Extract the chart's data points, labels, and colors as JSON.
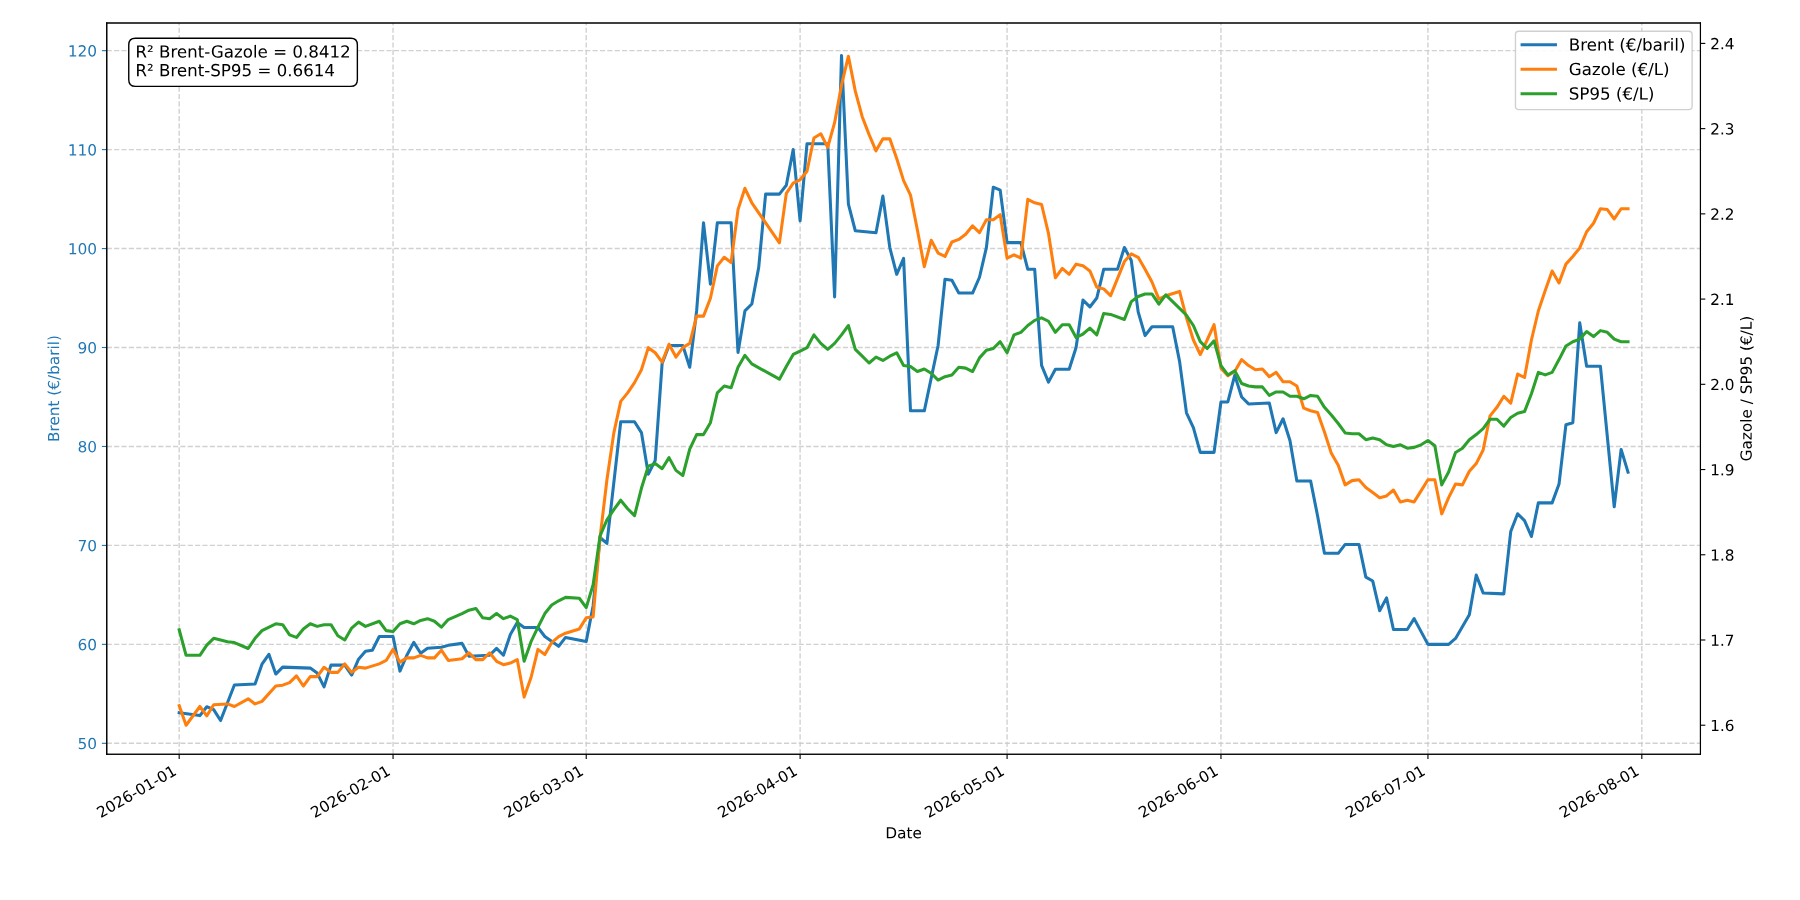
{
  "chart_data": {
    "type": "line",
    "xlabel": "Date",
    "ylabel": "Brent (€/baril)",
    "y2label": "Gazole / SP95 (€/L)",
    "annotations": [
      "R² Brent-Gazole = 0.8412",
      "R² Brent-SP95 = 0.6614"
    ],
    "legend": "top right",
    "grid": true,
    "line_style": "solid",
    "marker": "none",
    "xlim": [
      "2025-12-21T12:00",
      "2026-08-09T12:00"
    ],
    "xticks": [
      "2026-01-01",
      "2026-02-01",
      "2026-03-01",
      "2026-04-01",
      "2026-05-01",
      "2026-06-01",
      "2026-07-01",
      "2026-08-01"
    ],
    "ylim": [
      48.9,
      122.8
    ],
    "yticks": [
      50,
      60,
      70,
      80,
      90,
      100,
      110,
      120
    ],
    "y2lim": [
      1.566,
      2.424
    ],
    "y2ticks": [
      1.6,
      1.7,
      1.8,
      1.9,
      {
        "value": 2.0,
        "label": "2.0"
      },
      2.1,
      2.2,
      2.3,
      2.4
    ],
    "x": [
      "2026-01-01",
      "2026-01-02",
      "2026-01-04",
      "2026-01-05",
      "2026-01-06",
      "2026-01-08",
      "2026-01-09",
      "2026-01-11",
      "2026-01-12",
      "2026-01-13",
      "2026-01-15",
      "2026-01-16",
      "2026-01-17",
      "2026-01-18",
      "2026-01-19",
      "2026-01-20",
      "2026-01-21",
      "2026-01-22",
      "2026-01-23",
      "2026-01-24",
      "2026-01-25",
      "2026-01-26",
      "2026-01-27",
      "2026-01-28",
      "2026-01-30",
      "2026-01-31",
      "2026-02-01",
      "2026-02-02",
      "2026-02-03",
      "2026-02-04",
      "2026-02-05",
      "2026-02-06",
      "2026-02-07",
      "2026-02-08",
      "2026-02-09",
      "2026-02-11",
      "2026-02-12",
      "2026-02-13",
      "2026-02-14",
      "2026-02-15",
      "2026-02-16",
      "2026-02-17",
      "2026-02-18",
      "2026-02-19",
      "2026-02-20",
      "2026-02-21",
      "2026-02-22",
      "2026-02-23",
      "2026-02-24",
      "2026-02-25",
      "2026-02-26",
      "2026-02-28",
      "2026-03-01",
      "2026-03-02",
      "2026-03-03",
      "2026-03-04",
      "2026-03-05",
      "2026-03-06",
      "2026-03-07",
      "2026-03-08",
      "2026-03-09",
      "2026-03-10",
      "2026-03-11",
      "2026-03-12",
      "2026-03-13",
      "2026-03-14",
      "2026-03-15",
      "2026-03-16",
      "2026-03-17",
      "2026-03-18",
      "2026-03-19",
      "2026-03-20",
      "2026-03-21",
      "2026-03-22",
      "2026-03-23",
      "2026-03-24",
      "2026-03-25",
      "2026-03-29",
      "2026-03-30",
      "2026-03-31",
      "2026-04-01",
      "2026-04-02",
      "2026-04-03",
      "2026-04-04",
      "2026-04-05",
      "2026-04-06",
      "2026-04-07",
      "2026-04-08",
      "2026-04-09",
      "2026-04-10",
      "2026-04-11",
      "2026-04-12",
      "2026-04-13",
      "2026-04-14",
      "2026-04-15",
      "2026-04-16",
      "2026-04-17",
      "2026-04-18",
      "2026-04-19",
      "2026-04-20",
      "2026-04-21",
      "2026-04-22",
      "2026-04-23",
      "2026-04-24",
      "2026-04-25",
      "2026-04-26",
      "2026-04-27",
      "2026-04-28",
      "2026-04-29",
      "2026-04-30",
      "2026-05-01",
      "2026-05-02",
      "2026-05-03",
      "2026-05-04",
      "2026-05-05",
      "2026-05-06",
      "2026-05-07",
      "2026-05-08",
      "2026-05-09",
      "2026-05-10",
      "2026-05-11",
      "2026-05-12",
      "2026-05-13",
      "2026-05-14",
      "2026-05-15",
      "2026-05-16",
      "2026-05-18",
      "2026-05-19",
      "2026-05-20",
      "2026-05-21",
      "2026-05-22",
      "2026-05-23",
      "2026-05-24",
      "2026-05-26",
      "2026-05-27",
      "2026-05-28",
      "2026-05-29",
      "2026-05-30",
      "2026-05-31",
      "2026-06-01",
      "2026-06-02",
      "2026-06-03",
      "2026-06-04",
      "2026-06-05",
      "2026-06-06",
      "2026-06-07",
      "2026-06-08",
      "2026-06-09",
      "2026-06-10",
      "2026-06-11",
      "2026-06-12",
      "2026-06-13",
      "2026-06-14",
      "2026-06-15",
      "2026-06-16",
      "2026-06-17",
      "2026-06-18",
      "2026-06-19",
      "2026-06-20",
      "2026-06-21",
      "2026-06-22",
      "2026-06-23",
      "2026-06-24",
      "2026-06-25",
      "2026-06-26",
      "2026-06-27",
      "2026-06-28",
      "2026-06-29",
      "2026-06-30",
      "2026-07-01",
      "2026-07-02",
      "2026-07-03",
      "2026-07-04",
      "2026-07-05",
      "2026-07-06",
      "2026-07-07",
      "2026-07-08",
      "2026-07-09",
      "2026-07-10",
      "2026-07-11",
      "2026-07-12",
      "2026-07-13",
      "2026-07-14",
      "2026-07-15",
      "2026-07-16",
      "2026-07-17",
      "2026-07-18",
      "2026-07-19",
      "2026-07-20",
      "2026-07-21",
      "2026-07-22",
      "2026-07-23",
      "2026-07-24",
      "2026-07-25",
      "2026-07-26",
      "2026-07-27",
      "2026-07-28",
      "2026-07-29",
      "2026-07-30"
    ],
    "series": [
      {
        "name": "Brent (€/baril)",
        "color": "#1f77b4",
        "x": [
          "2026-01-01",
          "2026-01-04",
          "2026-01-05",
          "2026-01-06",
          "2026-01-07",
          "2026-01-09",
          "2026-01-12",
          "2026-01-13",
          "2026-01-14",
          "2026-01-15",
          "2026-01-16",
          "2026-01-20",
          "2026-01-21",
          "2026-01-22",
          "2026-01-23",
          "2026-01-25",
          "2026-01-26",
          "2026-01-27",
          "2026-01-28",
          "2026-01-29",
          "2026-01-30",
          "2026-02-01",
          "2026-02-02",
          "2026-02-03",
          "2026-02-04",
          "2026-02-05",
          "2026-02-06",
          "2026-02-08",
          "2026-02-09",
          "2026-02-11",
          "2026-02-12",
          "2026-02-15",
          "2026-02-16",
          "2026-02-17",
          "2026-02-18",
          "2026-02-19",
          "2026-02-20",
          "2026-02-22",
          "2026-02-23",
          "2026-02-25",
          "2026-02-26",
          "2026-03-01",
          "2026-03-02",
          "2026-03-03",
          "2026-03-04",
          "2026-03-06",
          "2026-03-08",
          "2026-03-09",
          "2026-03-10",
          "2026-03-11",
          "2026-03-12",
          "2026-03-13",
          "2026-03-15",
          "2026-03-16",
          "2026-03-17",
          "2026-03-18",
          "2026-03-19",
          "2026-03-20",
          "2026-03-22",
          "2026-03-23",
          "2026-03-24",
          "2026-03-25",
          "2026-03-26",
          "2026-03-27",
          "2026-03-29",
          "2026-03-30",
          "2026-03-31",
          "2026-04-01",
          "2026-04-02",
          "2026-04-05",
          "2026-04-06",
          "2026-04-07",
          "2026-04-08",
          "2026-04-09",
          "2026-04-12",
          "2026-04-13",
          "2026-04-14",
          "2026-04-15",
          "2026-04-16",
          "2026-04-17",
          "2026-04-19",
          "2026-04-21",
          "2026-04-22",
          "2026-04-23",
          "2026-04-24",
          "2026-04-26",
          "2026-04-27",
          "2026-04-28",
          "2026-04-29",
          "2026-04-30",
          "2026-05-01",
          "2026-05-03",
          "2026-05-04",
          "2026-05-05",
          "2026-05-06",
          "2026-05-07",
          "2026-05-08",
          "2026-05-10",
          "2026-05-11",
          "2026-05-12",
          "2026-05-13",
          "2026-05-14",
          "2026-05-15",
          "2026-05-17",
          "2026-05-18",
          "2026-05-19",
          "2026-05-20",
          "2026-05-21",
          "2026-05-22",
          "2026-05-25",
          "2026-05-26",
          "2026-05-27",
          "2026-05-28",
          "2026-05-29",
          "2026-05-31",
          "2026-06-01",
          "2026-06-02",
          "2026-06-03",
          "2026-06-04",
          "2026-06-05",
          "2026-06-08",
          "2026-06-09",
          "2026-06-10",
          "2026-06-11",
          "2026-06-12",
          "2026-06-14",
          "2026-06-15",
          "2026-06-16",
          "2026-06-18",
          "2026-06-19",
          "2026-06-21",
          "2026-06-22",
          "2026-06-23",
          "2026-06-24",
          "2026-06-25",
          "2026-06-26",
          "2026-06-28",
          "2026-06-29",
          "2026-07-01",
          "2026-07-04",
          "2026-07-05",
          "2026-07-07",
          "2026-07-08",
          "2026-07-09",
          "2026-07-12",
          "2026-07-13",
          "2026-07-14",
          "2026-07-15",
          "2026-07-16",
          "2026-07-17",
          "2026-07-19",
          "2026-07-20",
          "2026-07-21",
          "2026-07-22",
          "2026-07-23",
          "2026-07-24",
          "2026-07-26",
          "2026-07-28",
          "2026-07-29",
          "2026-07-30"
        ],
        "values": [
          53.1,
          52.8,
          53.7,
          53.4,
          52.3,
          55.9,
          56.0,
          58.0,
          59.0,
          57.0,
          57.7,
          57.6,
          57.1,
          55.7,
          57.9,
          57.9,
          56.9,
          58.5,
          59.3,
          59.4,
          60.8,
          60.8,
          57.3,
          58.9,
          60.2,
          59.1,
          59.6,
          59.7,
          59.9,
          60.1,
          58.8,
          58.9,
          59.6,
          58.9,
          61.0,
          62.2,
          61.7,
          61.7,
          60.8,
          59.8,
          60.7,
          60.3,
          63.9,
          70.8,
          70.2,
          82.5,
          82.5,
          81.4,
          77.2,
          78.6,
          88.4,
          90.2,
          90.2,
          88.0,
          93.7,
          102.6,
          96.4,
          102.6,
          102.6,
          89.5,
          93.7,
          94.4,
          98.1,
          105.5,
          105.5,
          106.4,
          110.0,
          102.8,
          110.6,
          110.6,
          95.1,
          119.5,
          104.5,
          101.8,
          101.6,
          105.3,
          100.1,
          97.4,
          99.0,
          83.6,
          83.6,
          90.2,
          96.9,
          96.8,
          95.5,
          95.5,
          97.1,
          100.1,
          106.2,
          105.9,
          100.6,
          100.6,
          97.9,
          97.9,
          88.2,
          86.5,
          87.8,
          87.8,
          90.0,
          94.8,
          94.1,
          95.0,
          97.9,
          97.9,
          100.1,
          98.8,
          93.6,
          91.2,
          92.1,
          92.1,
          88.6,
          83.4,
          81.9,
          79.4,
          79.4,
          84.5,
          84.5,
          87.2,
          85.0,
          84.3,
          84.4,
          81.4,
          82.8,
          80.6,
          76.5,
          76.5,
          73.0,
          69.2,
          69.2,
          70.1,
          70.1,
          66.8,
          66.4,
          63.4,
          64.7,
          61.5,
          61.5,
          62.6,
          60.0,
          60.0,
          60.6,
          63.0,
          67.0,
          65.2,
          65.1,
          71.4,
          73.2,
          72.5,
          70.9,
          74.3,
          74.3,
          76.2,
          82.2,
          82.4,
          92.5,
          88.1,
          88.1,
          73.9,
          79.7,
          77.4
        ]
      },
      {
        "name": "Gazole (€/L)",
        "color": "#ff7f0e",
        "axis": "y2",
        "values": [
          1.623,
          1.6,
          1.622,
          1.611,
          1.624,
          1.625,
          1.622,
          1.631,
          1.625,
          1.628,
          1.646,
          1.647,
          1.65,
          1.658,
          1.646,
          1.657,
          1.657,
          1.668,
          1.662,
          1.662,
          1.672,
          1.662,
          1.668,
          1.667,
          1.672,
          1.676,
          1.689,
          1.674,
          1.679,
          1.679,
          1.682,
          1.679,
          1.679,
          1.688,
          1.676,
          1.678,
          1.685,
          1.677,
          1.677,
          1.685,
          1.675,
          1.671,
          1.673,
          1.677,
          1.633,
          1.656,
          1.689,
          1.683,
          1.697,
          1.704,
          1.708,
          1.713,
          1.726,
          1.727,
          1.82,
          1.888,
          1.943,
          1.98,
          1.99,
          2.002,
          2.017,
          2.043,
          2.037,
          2.026,
          2.047,
          2.032,
          2.043,
          2.048,
          2.08,
          2.08,
          2.101,
          2.139,
          2.149,
          2.143,
          2.205,
          2.23,
          2.213,
          2.166,
          2.224,
          2.236,
          2.24,
          2.25,
          2.289,
          2.294,
          2.278,
          2.307,
          2.351,
          2.385,
          2.344,
          2.314,
          2.293,
          2.274,
          2.288,
          2.288,
          2.265,
          2.239,
          2.222,
          2.181,
          2.138,
          2.169,
          2.154,
          2.15,
          2.167,
          2.17,
          2.176,
          2.186,
          2.178,
          2.193,
          2.193,
          2.199,
          2.148,
          2.152,
          2.148,
          2.217,
          2.213,
          2.211,
          2.177,
          2.125,
          2.136,
          2.129,
          2.141,
          2.139,
          2.133,
          2.114,
          2.112,
          2.104,
          2.144,
          2.153,
          2.149,
          2.135,
          2.12,
          2.1,
          2.104,
          2.109,
          2.078,
          2.052,
          2.035,
          2.052,
          2.07,
          2.019,
          2.01,
          2.015,
          2.029,
          2.022,
          2.017,
          2.018,
          2.009,
          2.014,
          2.003,
          2.003,
          1.998,
          1.972,
          1.969,
          1.967,
          1.944,
          1.919,
          1.905,
          1.882,
          1.887,
          1.888,
          1.879,
          1.873,
          1.867,
          1.869,
          1.876,
          1.862,
          1.864,
          1.862,
          1.875,
          1.888,
          1.888,
          1.848,
          1.867,
          1.883,
          1.882,
          1.898,
          1.907,
          1.923,
          1.963,
          1.973,
          1.986,
          1.978,
          2.012,
          2.008,
          2.052,
          2.086,
          2.11,
          2.133,
          2.119,
          2.141,
          2.15,
          2.16,
          2.179,
          2.189,
          2.206,
          2.205,
          2.194,
          2.206,
          2.206
        ]
      },
      {
        "name": "SP95 (€/L)",
        "color": "#2ca02c",
        "axis": "y2",
        "values": [
          1.712,
          1.682,
          1.682,
          1.694,
          1.702,
          1.698,
          1.697,
          1.69,
          1.702,
          1.711,
          1.719,
          1.718,
          1.706,
          1.703,
          1.713,
          1.719,
          1.716,
          1.718,
          1.718,
          1.705,
          1.7,
          1.714,
          1.721,
          1.716,
          1.722,
          1.711,
          1.71,
          1.719,
          1.722,
          1.719,
          1.723,
          1.725,
          1.722,
          1.715,
          1.724,
          1.731,
          1.735,
          1.737,
          1.726,
          1.725,
          1.731,
          1.725,
          1.728,
          1.724,
          1.675,
          1.698,
          1.715,
          1.731,
          1.741,
          1.746,
          1.75,
          1.749,
          1.738,
          1.765,
          1.822,
          1.841,
          1.853,
          1.864,
          1.854,
          1.846,
          1.878,
          1.904,
          1.907,
          1.901,
          1.914,
          1.899,
          1.893,
          1.924,
          1.941,
          1.941,
          1.955,
          1.99,
          1.998,
          1.996,
          2.02,
          2.034,
          2.024,
          2.006,
          2.021,
          2.035,
          2.039,
          2.043,
          2.058,
          2.048,
          2.041,
          2.048,
          2.058,
          2.069,
          2.041,
          2.033,
          2.025,
          2.032,
          2.028,
          2.033,
          2.037,
          2.022,
          2.021,
          2.015,
          2.018,
          2.013,
          2.005,
          2.009,
          2.011,
          2.02,
          2.019,
          2.015,
          2.031,
          2.04,
          2.042,
          2.05,
          2.037,
          2.058,
          2.061,
          2.069,
          2.075,
          2.078,
          2.074,
          2.061,
          2.07,
          2.07,
          2.055,
          2.059,
          2.066,
          2.058,
          2.083,
          2.082,
          2.076,
          2.097,
          2.103,
          2.106,
          2.106,
          2.094,
          2.105,
          2.089,
          2.081,
          2.069,
          2.05,
          2.042,
          2.051,
          2.022,
          2.011,
          2.016,
          2.001,
          1.998,
          1.997,
          1.997,
          1.987,
          1.991,
          1.991,
          1.986,
          1.986,
          1.983,
          1.987,
          1.986,
          1.973,
          1.964,
          1.954,
          1.943,
          1.942,
          1.942,
          1.935,
          1.937,
          1.935,
          1.929,
          1.927,
          1.929,
          1.925,
          1.926,
          1.929,
          1.934,
          1.928,
          1.882,
          1.897,
          1.92,
          1.925,
          1.935,
          1.941,
          1.948,
          1.959,
          1.959,
          1.951,
          1.961,
          1.966,
          1.968,
          1.989,
          2.014,
          2.011,
          2.014,
          2.029,
          2.045,
          2.05,
          2.053,
          2.062,
          2.056,
          2.063,
          2.061,
          2.053,
          2.05,
          2.05
        ]
      }
    ]
  }
}
